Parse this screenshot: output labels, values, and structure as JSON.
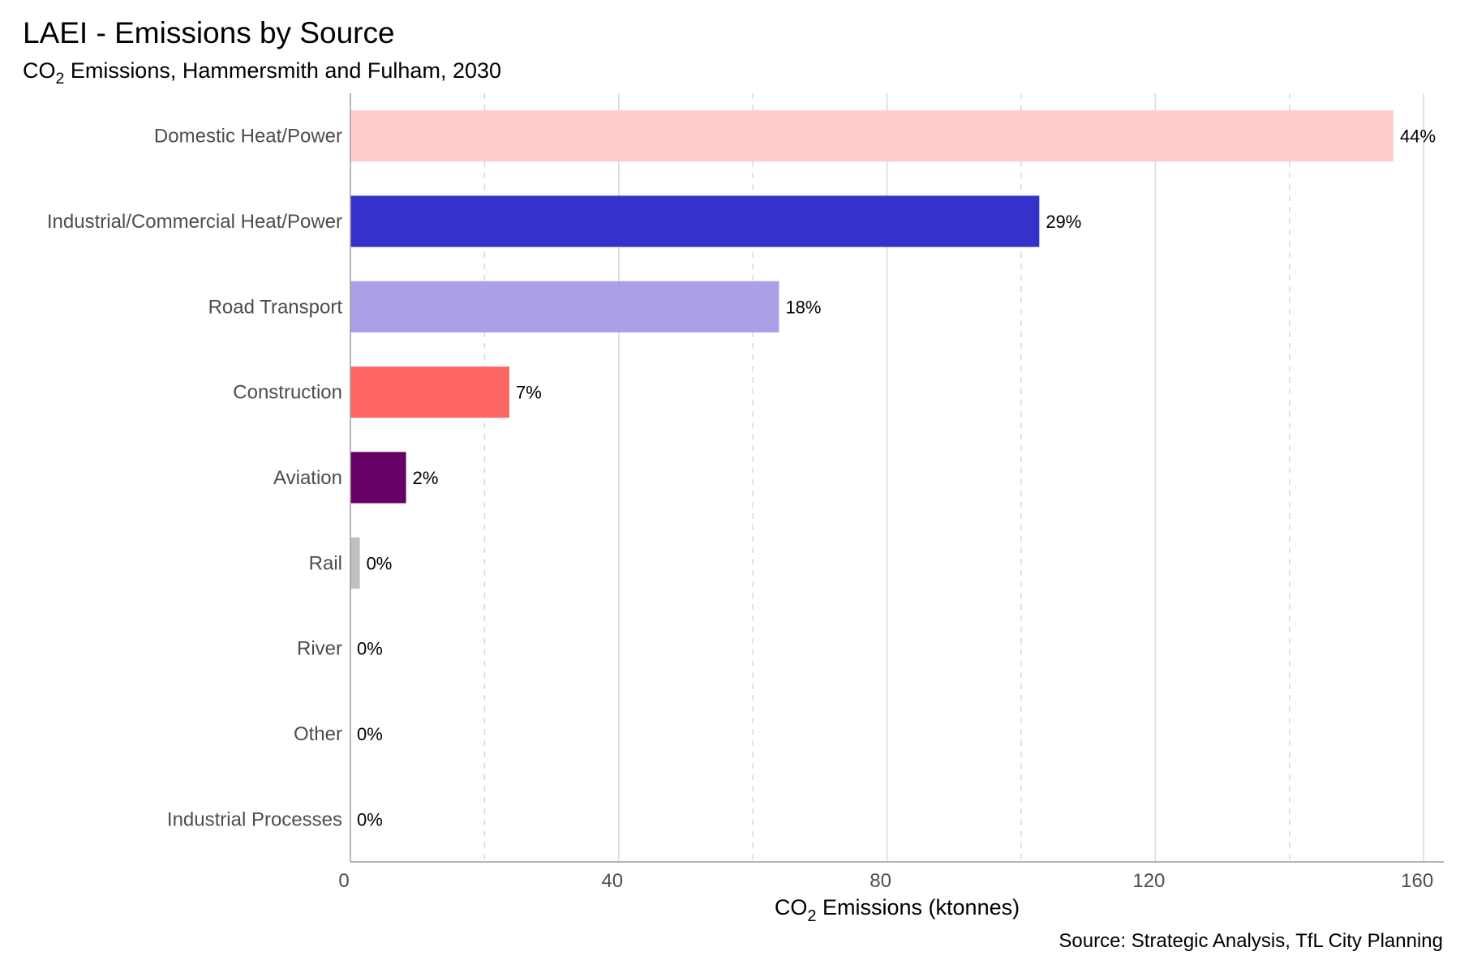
{
  "chart_data": {
    "type": "bar",
    "orientation": "horizontal",
    "title": "LAEI - Emissions by Source",
    "subtitle": {
      "prefix": "CO",
      "subscript": "2",
      "rest": " Emissions, Hammersmith and Fulham, 2030"
    },
    "xlabel": {
      "prefix": "CO",
      "subscript": "2",
      "rest": " Emissions (ktonnes)"
    },
    "source": "Source: Strategic Analysis, TfL City Planning",
    "categories": [
      "Domestic Heat/Power",
      "Industrial/Commercial Heat/Power",
      "Road Transport",
      "Construction",
      "Aviation",
      "Rail",
      "River",
      "Other",
      "Industrial Processes"
    ],
    "values": [
      155.5,
      102.7,
      63.9,
      23.7,
      8.3,
      1.4,
      0,
      0,
      0
    ],
    "data_labels": [
      "44%",
      "29%",
      "18%",
      "7%",
      "2%",
      "0%",
      "0%",
      "0%",
      "0%"
    ],
    "colors": [
      "#ffcccc",
      "#3333cc",
      "#aaa0e8",
      "#ff6666",
      "#660066",
      "#c0c0c0",
      "#c0c0c0",
      "#c0c0c0",
      "#c0c0c0"
    ],
    "xlim": [
      0,
      163
    ],
    "xticks": [
      0,
      40,
      80,
      120,
      160
    ],
    "minor_gridlines": [
      20,
      60,
      100,
      140
    ],
    "grid": true,
    "legend": "none"
  }
}
